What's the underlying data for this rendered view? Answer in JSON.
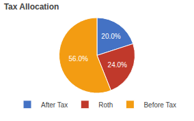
{
  "chart_data": {
    "type": "pie",
    "title": "Tax Allocation",
    "categories": [
      "After Tax",
      "Roth",
      "Before Tax"
    ],
    "values": [
      20.0,
      24.0,
      56.0
    ],
    "value_labels": [
      "20.0%",
      "24.0%",
      "56.0%"
    ],
    "colors": [
      "#4472C4",
      "#C0392B",
      "#F39C12"
    ],
    "data_labels": true,
    "legend": "bottom"
  }
}
